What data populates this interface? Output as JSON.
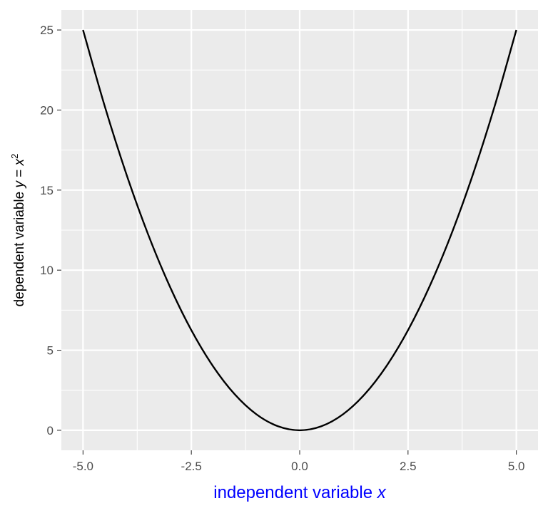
{
  "chart_data": {
    "type": "line",
    "function": "y = x^2",
    "x": [
      -5.0,
      -4.5,
      -4.0,
      -3.5,
      -3.0,
      -2.5,
      -2.0,
      -1.5,
      -1.0,
      -0.5,
      0.0,
      0.5,
      1.0,
      1.5,
      2.0,
      2.5,
      3.0,
      3.5,
      4.0,
      4.5,
      5.0
    ],
    "y": [
      25.0,
      20.25,
      16.0,
      12.25,
      9.0,
      6.25,
      4.0,
      2.25,
      1.0,
      0.25,
      0.0,
      0.25,
      1.0,
      2.25,
      4.0,
      6.25,
      9.0,
      12.25,
      16.0,
      20.25,
      25.0
    ],
    "xlim": [
      -5.5,
      5.5
    ],
    "ylim": [
      -1.25,
      26.25
    ],
    "x_ticks": [
      -5.0,
      -2.5,
      0.0,
      2.5,
      5.0
    ],
    "x_tick_labels": [
      "-5.0",
      "-2.5",
      "0.0",
      "2.5",
      "5.0"
    ],
    "y_ticks": [
      0,
      5,
      10,
      15,
      20,
      25
    ],
    "y_tick_labels": [
      "0",
      "5",
      "10",
      "15",
      "20",
      "25"
    ],
    "xlabel": {
      "text": "independent variable ",
      "var": "x",
      "color": "#0000ff"
    },
    "ylabel": {
      "text": "dependent variable ",
      "var": "y",
      "eq": " = ",
      "var2": "x",
      "sup": "2",
      "color": "#000000"
    },
    "grid": true,
    "colors": {
      "panel_background": "#ebebeb",
      "grid_major": "#ffffff",
      "grid_minor": "#ffffff",
      "line": "#000000",
      "tick_label": "#4d4d4d"
    }
  }
}
